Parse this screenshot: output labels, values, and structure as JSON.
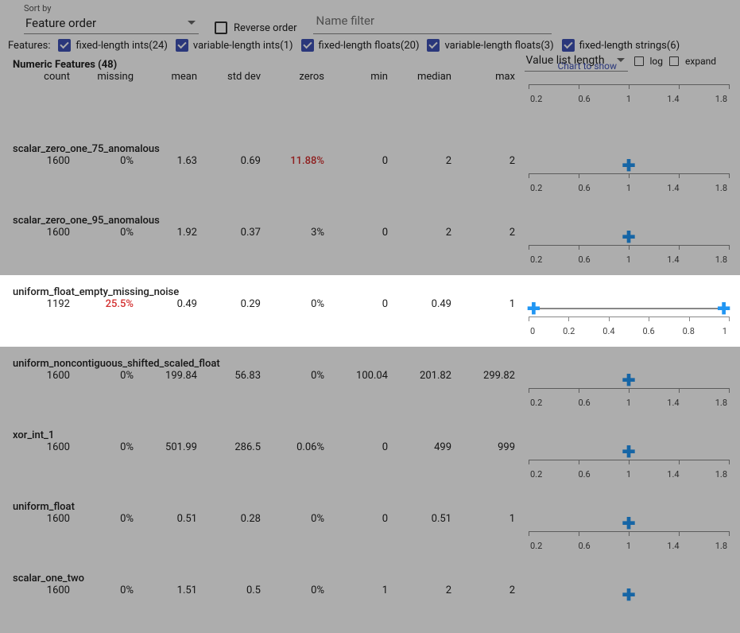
{
  "sort": {
    "label": "Sort by",
    "value": "Feature order",
    "reverse_label": "Reverse order",
    "name_filter_placeholder": "Name filter"
  },
  "features_label": "Features:",
  "feature_filters": [
    {
      "label": "fixed-length ints(24)",
      "checked": true
    },
    {
      "label": "variable-length ints(1)",
      "checked": true
    },
    {
      "label": "fixed-length floats(20)",
      "checked": true
    },
    {
      "label": "variable-length floats(3)",
      "checked": true
    },
    {
      "label": "fixed-length strings(6)",
      "checked": true
    }
  ],
  "section_title": "Numeric Features (48)",
  "columns": [
    "count",
    "missing",
    "mean",
    "std dev",
    "zeros",
    "min",
    "median",
    "max"
  ],
  "chart": {
    "help": "Chart to show",
    "select": "Value list length",
    "log": "log",
    "expand": "expand"
  },
  "axis_ticks_std": [
    "0.2",
    "0.6",
    "1",
    "1.4",
    "1.8"
  ],
  "axis_ticks_wide": [
    "0",
    "0.2",
    "0.4",
    "0.6",
    "0.8",
    "1"
  ],
  "rows": [
    {
      "name": "",
      "vals": [
        "",
        "",
        "",
        "",
        "",
        "",
        "",
        ""
      ],
      "chart": "axisonly"
    },
    {
      "name": "scalar_zero_one_75_anomalous",
      "vals": [
        "1600",
        "0%",
        "1.63",
        "0.69",
        "11.88%",
        "0",
        "2",
        "2"
      ],
      "red_idx": [
        4
      ],
      "chart": "point"
    },
    {
      "name": "scalar_zero_one_95_anomalous",
      "vals": [
        "1600",
        "0%",
        "1.92",
        "0.37",
        "3%",
        "0",
        "2",
        "2"
      ],
      "chart": "point"
    },
    {
      "name": "uniform_float_empty_missing_noise",
      "vals": [
        "1192",
        "25.5%",
        "0.49",
        "0.29",
        "0%",
        "0",
        "0.49",
        "1"
      ],
      "red_idx": [
        1
      ],
      "chart": "range",
      "highlight": true
    },
    {
      "name": "uniform_noncontiguous_shifted_scaled_float",
      "vals": [
        "1600",
        "0%",
        "199.84",
        "56.83",
        "0%",
        "100.04",
        "201.82",
        "299.82"
      ],
      "chart": "point"
    },
    {
      "name": "xor_int_1",
      "vals": [
        "1600",
        "0%",
        "501.99",
        "286.5",
        "0.06%",
        "0",
        "499",
        "999"
      ],
      "chart": "point"
    },
    {
      "name": "uniform_float",
      "vals": [
        "1600",
        "0%",
        "0.51",
        "0.28",
        "0%",
        "0",
        "0.51",
        "1"
      ],
      "chart": "point"
    },
    {
      "name": "scalar_one_two",
      "vals": [
        "1600",
        "0%",
        "1.51",
        "0.5",
        "0%",
        "1",
        "2",
        "2"
      ],
      "chart": "point_half"
    }
  ]
}
